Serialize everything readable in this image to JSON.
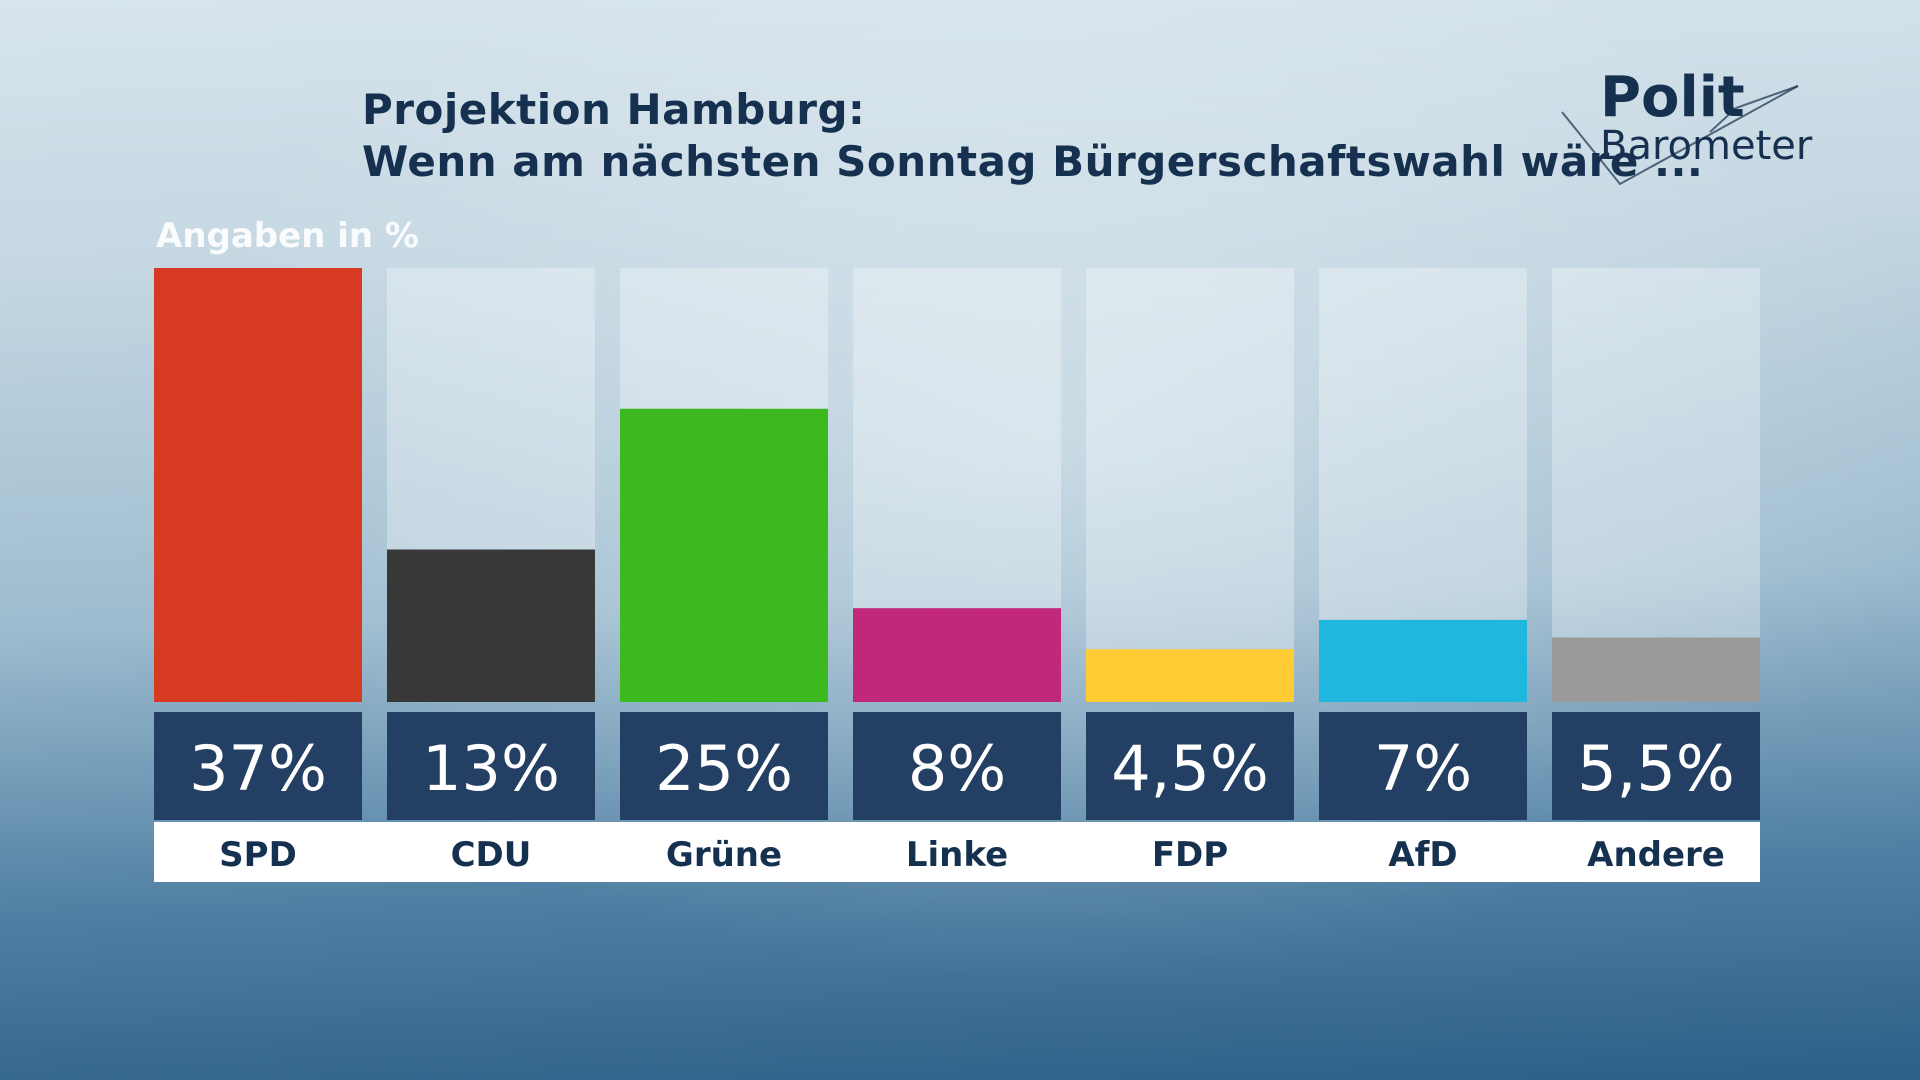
{
  "header": {
    "title_line1": "Projektion Hamburg:",
    "title_line2": "Wenn am nächsten Sonntag Bürgerschaftswahl wäre ...",
    "unit_label": "Angaben in %"
  },
  "logo": {
    "line1": "Polit",
    "line2": "Barometer"
  },
  "colors": {
    "value_box": "#233f63",
    "text_dark": "#15314f"
  },
  "chart_data": {
    "type": "bar",
    "title": "Projektion Hamburg: Wenn am nächsten Sonntag Bürgerschaftswahl wäre ...",
    "ylabel": "Angaben in %",
    "ylim": [
      0,
      37
    ],
    "categories": [
      "SPD",
      "CDU",
      "Grüne",
      "Linke",
      "FDP",
      "AfD",
      "Andere"
    ],
    "values": [
      37,
      13,
      25,
      8,
      4.5,
      7,
      5.5
    ],
    "value_labels": [
      "37%",
      "13%",
      "25%",
      "8%",
      "4,5%",
      "7%",
      "5,5%"
    ],
    "colors": [
      "#d63a22",
      "#383838",
      "#3cb91f",
      "#c2287a",
      "#ffcc33",
      "#1fb7dd",
      "#9a9a9a"
    ]
  }
}
